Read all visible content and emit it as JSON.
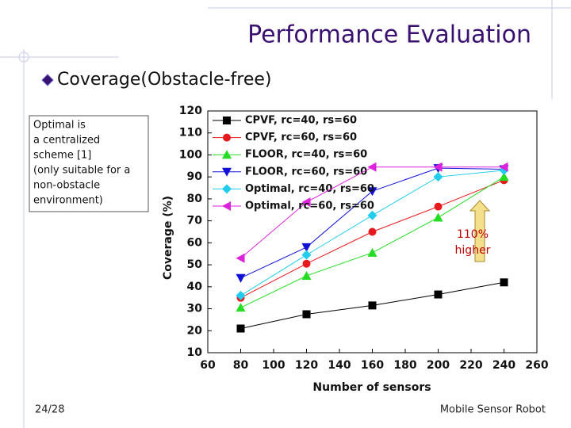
{
  "slide": {
    "title": "Performance Evaluation",
    "bullet": "Coverage(Obstacle-free)",
    "note": [
      "Optimal is",
      "a centralized",
      "scheme [1]",
      "(only suitable for a",
      "non-obstacle",
      "environment)"
    ],
    "annotation": [
      "110%",
      "higher"
    ],
    "page": "24/28",
    "footer": "Mobile Sensor Robot"
  },
  "chart_data": {
    "type": "line",
    "x_label": "Number of sensors",
    "y_label": "Coverage (%)",
    "x": [
      80,
      120,
      160,
      200,
      240
    ],
    "xlim": [
      60,
      260
    ],
    "xticks": [
      60,
      80,
      100,
      120,
      140,
      160,
      180,
      200,
      220,
      240,
      260
    ],
    "ylim": [
      10,
      120
    ],
    "yticks": [
      10,
      20,
      30,
      40,
      50,
      60,
      70,
      80,
      90,
      100,
      110,
      120
    ],
    "grid": false,
    "legend": "top-left",
    "series": [
      {
        "name": "CPVF, rc=40, rs=60",
        "color": "#000000",
        "marker": "square",
        "values": [
          21,
          27.5,
          31.5,
          36.5,
          42
        ]
      },
      {
        "name": "CPVF, rc=60, rs=60",
        "color": "#e8191c",
        "marker": "circle",
        "values": [
          35,
          50.5,
          65,
          76.5,
          88.5
        ]
      },
      {
        "name": "FLOOR, rc=40, rs=60",
        "color": "#22dd22",
        "marker": "triangle-up",
        "values": [
          30.5,
          45,
          55.5,
          71.5,
          90
        ]
      },
      {
        "name": "FLOOR, rc=60, rs=60",
        "color": "#1010d8",
        "marker": "triangle-down",
        "values": [
          44,
          58,
          83.5,
          94,
          93.5
        ]
      },
      {
        "name": "Optimal, rc=40, rs=60",
        "color": "#22ccee",
        "marker": "diamond",
        "values": [
          36,
          54.5,
          72.5,
          90,
          93
        ]
      },
      {
        "name": "Optimal, rc=60, rs=60",
        "color": "#dd22dd",
        "marker": "triangle-left",
        "values": [
          53,
          78.5,
          94.5,
          94.5,
          94.5
        ]
      }
    ]
  }
}
